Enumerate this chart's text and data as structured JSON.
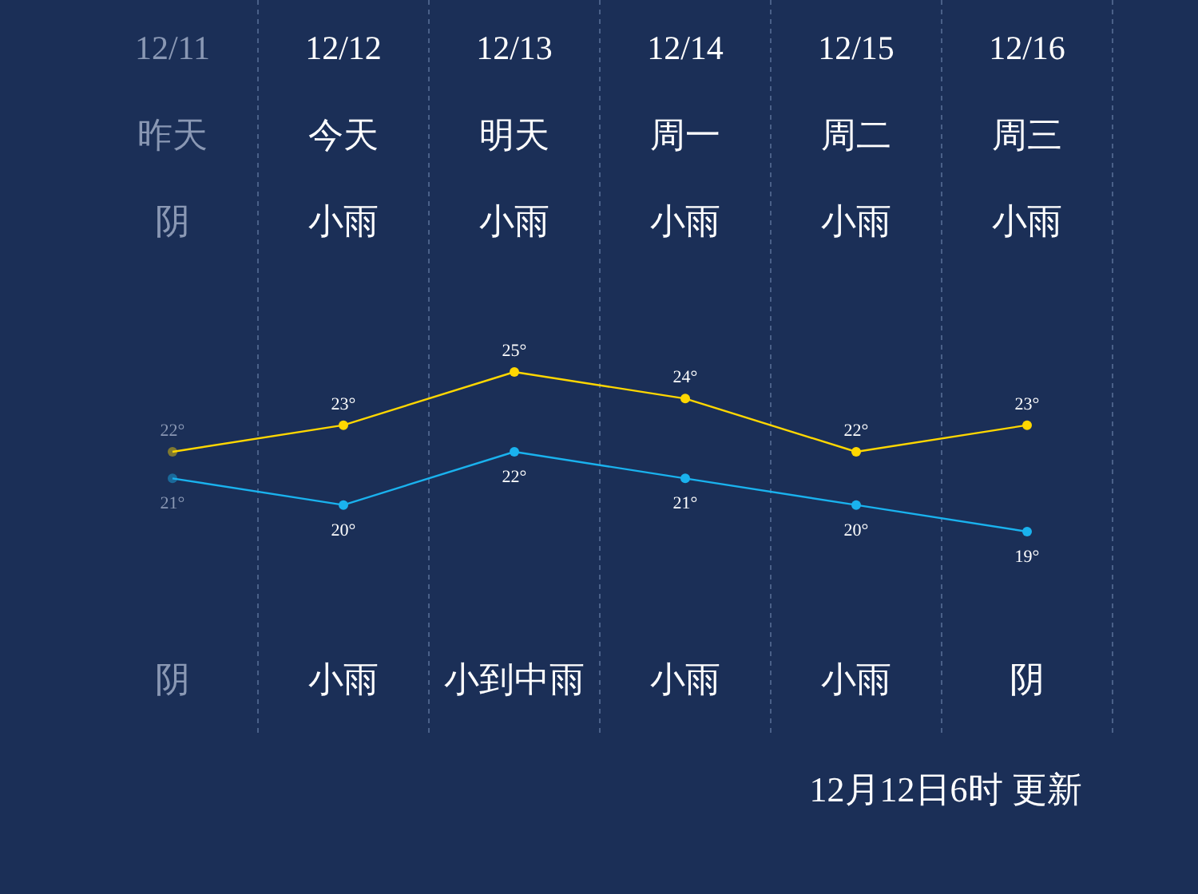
{
  "chart_data": {
    "type": "line",
    "categories": [
      "12/11",
      "12/12",
      "12/13",
      "12/14",
      "12/15",
      "12/16"
    ],
    "series": [
      {
        "color": "#ffd700",
        "values": [
          22,
          23,
          25,
          24,
          22,
          23
        ],
        "value_labels": [
          "22°",
          "23°",
          "25°",
          "24°",
          "22°",
          "23°"
        ]
      },
      {
        "color": "#1ab2ee",
        "values": [
          21,
          20,
          22,
          21,
          20,
          19
        ],
        "value_labels": [
          "21°",
          "20°",
          "22°",
          "21°",
          "20°",
          "19°"
        ]
      }
    ],
    "marker": "circle",
    "line_style": "solid",
    "annotations": [
      "昨天",
      "今天",
      "明天",
      "周一",
      "周二",
      "周三",
      "阴",
      "小雨",
      "小雨",
      "小雨",
      "小雨",
      "小雨",
      "阴",
      "小雨",
      "小到中雨",
      "小雨",
      "小雨",
      "阴",
      "12月12日6时 更新"
    ]
  }
}
